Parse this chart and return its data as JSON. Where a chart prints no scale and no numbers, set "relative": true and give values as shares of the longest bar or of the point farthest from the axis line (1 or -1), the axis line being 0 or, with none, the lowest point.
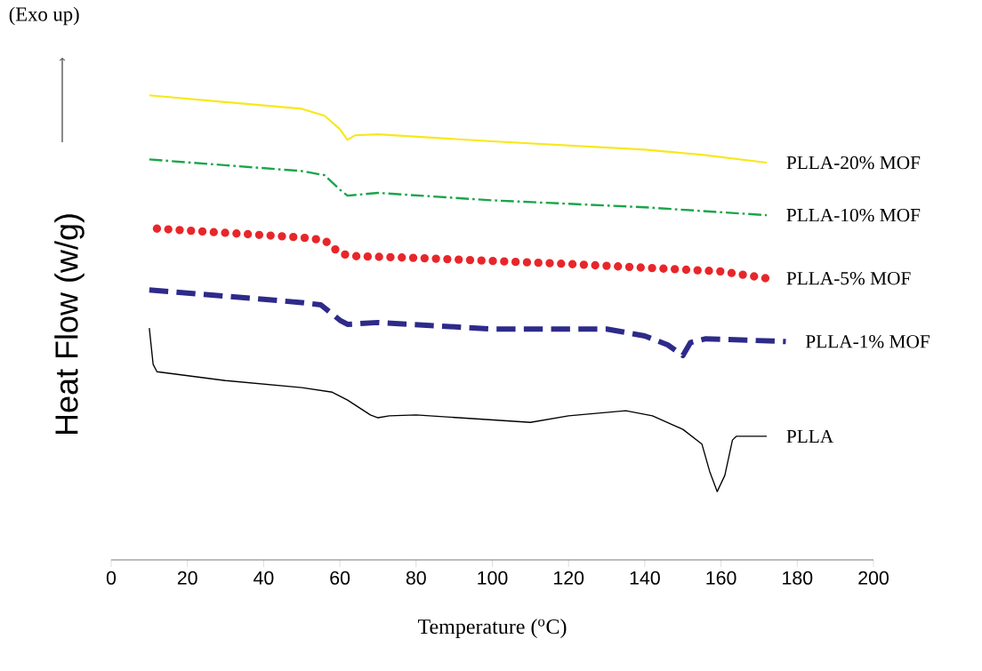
{
  "chart_data": {
    "type": "line",
    "relative": true,
    "xlabel": "Temperature ($^{o}$C)",
    "ylabel": "Heat Flow (w/g)",
    "annotations": [
      "(Exo up)"
    ],
    "xlim": [
      0,
      200
    ],
    "xticks": [
      0,
      20,
      40,
      60,
      80,
      100,
      120,
      140,
      160,
      180,
      200
    ],
    "series": [
      {
        "name": "PLLA-20% MOF",
        "color": "#f7e81a",
        "line_style": "solid",
        "x": [
          10,
          50,
          56,
          60,
          62,
          64,
          70,
          100,
          140,
          155,
          172
        ],
        "values": [
          1.0,
          0.971,
          0.956,
          0.927,
          0.904,
          0.914,
          0.916,
          0.901,
          0.883,
          0.872,
          0.855
        ]
      },
      {
        "name": "PLLA-10% MOF",
        "color": "#1aa64a",
        "line_style": "dashdot",
        "x": [
          10,
          50,
          56,
          60,
          62,
          70,
          100,
          140,
          172
        ],
        "values": [
          0.862,
          0.837,
          0.828,
          0.797,
          0.784,
          0.79,
          0.774,
          0.759,
          0.742
        ]
      },
      {
        "name": "PLLA-5% MOF",
        "color": "#e8262a",
        "line_style": "dotted",
        "x": [
          12,
          50,
          56,
          60,
          63,
          80,
          120,
          160,
          172
        ],
        "values": [
          0.713,
          0.694,
          0.688,
          0.66,
          0.654,
          0.65,
          0.637,
          0.621,
          0.606
        ]
      },
      {
        "name": "PLLA-1% MOF",
        "color": "#2e2a8a",
        "line_style": "dashed",
        "x": [
          10,
          50,
          55,
          60,
          62,
          70,
          100,
          130,
          140,
          146,
          150,
          152,
          156,
          177
        ],
        "values": [
          0.581,
          0.554,
          0.549,
          0.516,
          0.507,
          0.511,
          0.497,
          0.497,
          0.482,
          0.463,
          0.44,
          0.468,
          0.476,
          0.47
        ]
      },
      {
        "name": "PLLA",
        "color": "#000000",
        "line_style": "solid",
        "x": [
          10,
          11,
          12,
          30,
          50,
          58,
          62,
          68,
          70,
          73,
          80,
          110,
          120,
          135,
          142,
          150,
          155,
          157,
          159,
          161,
          163,
          164,
          172
        ],
        "values": [
          0.499,
          0.421,
          0.405,
          0.386,
          0.371,
          0.361,
          0.344,
          0.312,
          0.306,
          0.31,
          0.312,
          0.296,
          0.31,
          0.321,
          0.31,
          0.281,
          0.249,
          0.191,
          0.147,
          0.182,
          0.258,
          0.266,
          0.266
        ]
      }
    ]
  }
}
